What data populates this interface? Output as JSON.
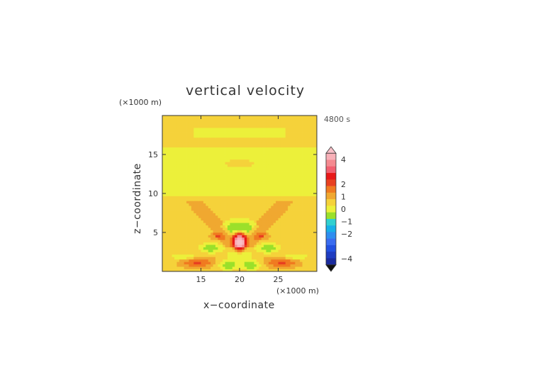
{
  "chart_data": {
    "type": "heatmap",
    "title": "vertical velocity",
    "xlabel": "x−coordinate",
    "ylabel": "z−coordinate",
    "x_unit": "(×1000 m)",
    "y_unit": "(×1000 m)",
    "time_label": "4800 s",
    "xlim": [
      10,
      30
    ],
    "ylim": [
      0,
      20
    ],
    "x_ticks": [
      "15",
      "20",
      "25"
    ],
    "y_ticks": [
      "5",
      "10",
      "15"
    ],
    "colorbar_ticks": [
      "4",
      "2",
      "1",
      "0",
      "−1",
      "−2",
      "−4"
    ],
    "colorbar_levels": [
      -4.5,
      -4,
      -3.5,
      -3,
      -2.5,
      -2,
      -1.5,
      -1,
      -0.5,
      0,
      0.5,
      1,
      1.5,
      2,
      2.5,
      3,
      3.5,
      4,
      4.5
    ],
    "colors": {
      "levels": [
        "#1b2b9e",
        "#1f3cc0",
        "#2250e0",
        "#3a6cf0",
        "#2e8df0",
        "#18b0e8",
        "#30d0d0",
        "#9be02a",
        "#ecf03a",
        "#f5d23a",
        "#f0a830",
        "#f07a20",
        "#e84020",
        "#e81818",
        "#f26070",
        "#f58a90",
        "#f8b0b8"
      ],
      "below": "#111111",
      "above": "#f8c0c8",
      "axis": "#333333"
    }
  }
}
